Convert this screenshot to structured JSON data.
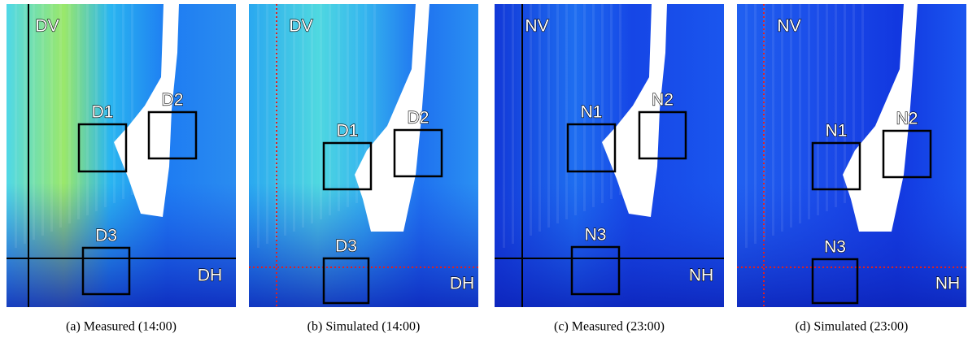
{
  "panels": [
    {
      "caption": "(a) Measured (14:00)",
      "vertical_label": "DV",
      "horizontal_label": "DH",
      "boxes": [
        "D1",
        "D2",
        "D3"
      ]
    },
    {
      "caption": "(b) Simulated (14:00)",
      "vertical_label": "DV",
      "horizontal_label": "DH",
      "boxes": [
        "D1",
        "D2",
        "D3"
      ]
    },
    {
      "caption": "(c) Measured (23:00)",
      "vertical_label": "NV",
      "horizontal_label": "NH",
      "boxes": [
        "N1",
        "N2",
        "N3"
      ]
    },
    {
      "caption": "(d) Simulated (23:00)",
      "vertical_label": "NV",
      "horizontal_label": "NH",
      "boxes": [
        "N1",
        "N2",
        "N3"
      ]
    }
  ]
}
